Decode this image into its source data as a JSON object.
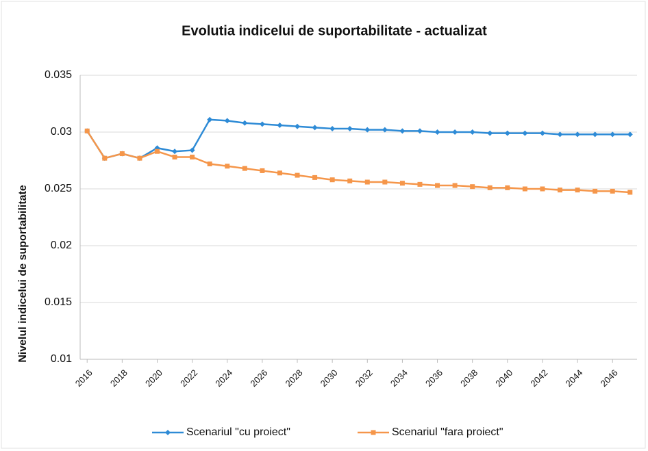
{
  "chart_data": {
    "type": "line",
    "title": "Evolutia indicelui de suportabilitate - actualizat",
    "y_label": "Nivelul indicelui de suportabilitate",
    "x": [
      2016,
      2017,
      2018,
      2019,
      2020,
      2021,
      2022,
      2023,
      2024,
      2025,
      2026,
      2027,
      2028,
      2029,
      2030,
      2031,
      2032,
      2033,
      2034,
      2035,
      2036,
      2037,
      2038,
      2039,
      2040,
      2041,
      2042,
      2043,
      2044,
      2045,
      2046,
      2047
    ],
    "series": [
      {
        "name": "Scenariul \"cu proiect\"",
        "color": "#2e8bd6",
        "marker": "diamond",
        "values": [
          0.0301,
          0.0277,
          0.0281,
          0.0277,
          0.0286,
          0.0283,
          0.0284,
          0.0311,
          0.031,
          0.0308,
          0.0307,
          0.0306,
          0.0305,
          0.0304,
          0.0303,
          0.0303,
          0.0302,
          0.0302,
          0.0301,
          0.0301,
          0.03,
          0.03,
          0.03,
          0.0299,
          0.0299,
          0.0299,
          0.0299,
          0.0298,
          0.0298,
          0.0298,
          0.0298,
          0.0298
        ]
      },
      {
        "name": "Scenariul \"fara proiect\"",
        "color": "#f5964a",
        "marker": "square",
        "values": [
          0.0301,
          0.0277,
          0.0281,
          0.0277,
          0.0283,
          0.0278,
          0.0278,
          0.0272,
          0.027,
          0.0268,
          0.0266,
          0.0264,
          0.0262,
          0.026,
          0.0258,
          0.0257,
          0.0256,
          0.0256,
          0.0255,
          0.0254,
          0.0253,
          0.0253,
          0.0252,
          0.0251,
          0.0251,
          0.025,
          0.025,
          0.0249,
          0.0249,
          0.0248,
          0.0248,
          0.0247
        ]
      }
    ],
    "xlim": [
      2015.6,
      2047.4
    ],
    "xticks": [
      2016,
      2018,
      2020,
      2022,
      2024,
      2026,
      2028,
      2030,
      2032,
      2034,
      2036,
      2038,
      2040,
      2042,
      2044,
      2046
    ],
    "ylim": [
      0.01,
      0.035
    ],
    "yticks": [
      0.01,
      0.015,
      0.02,
      0.025,
      0.03,
      0.035
    ],
    "grid": true,
    "legend": "bottom"
  }
}
